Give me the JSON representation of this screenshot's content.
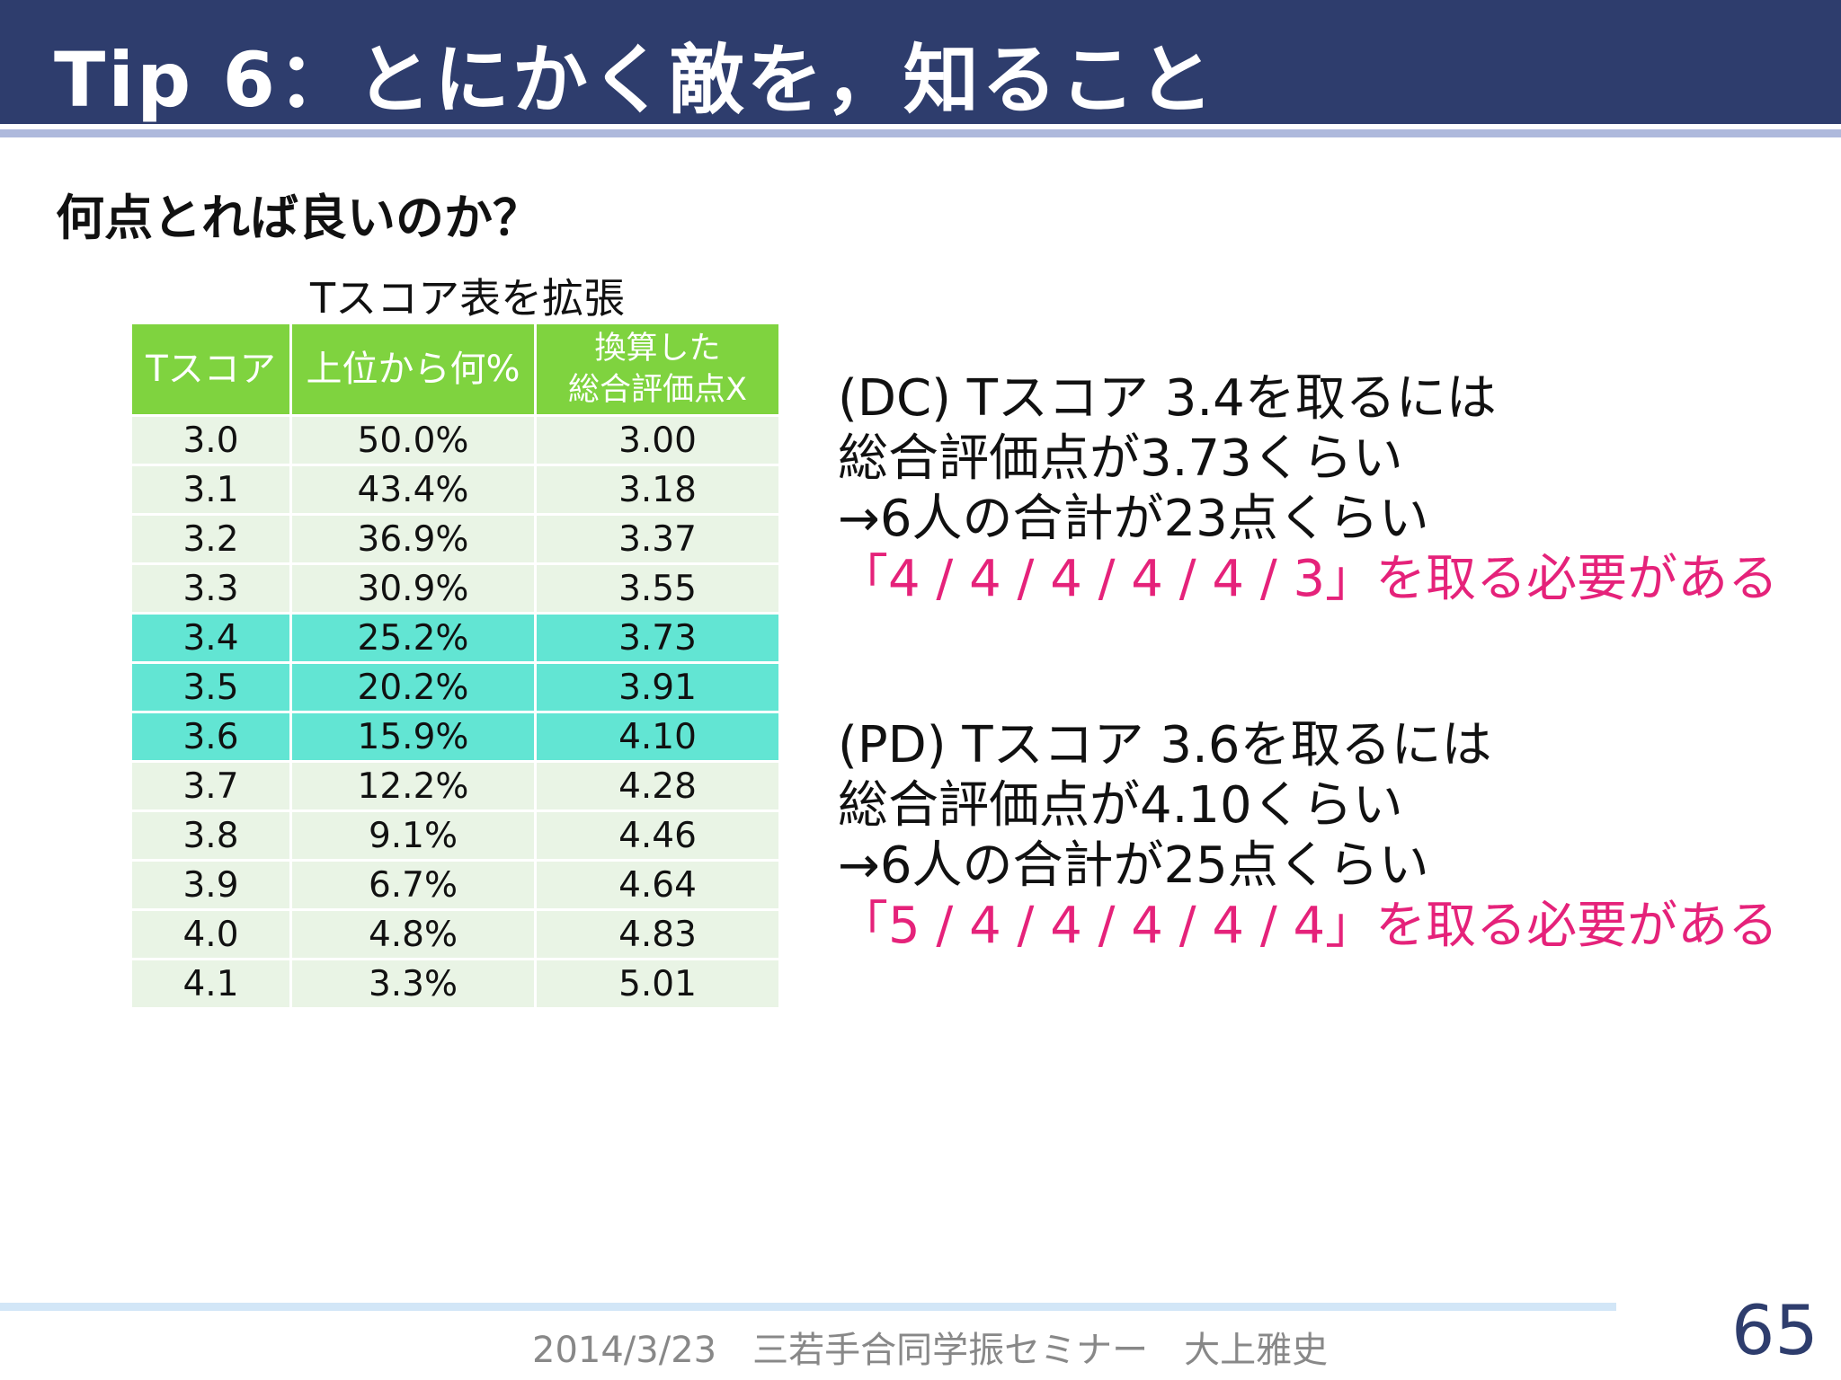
{
  "slide": {
    "title": "Tip 6：とにかく敵を，知ること",
    "subtitle": "何点とれば良いのか？",
    "page_number": "65"
  },
  "table": {
    "caption": "Tスコア表を拡張",
    "headers": [
      "Tスコア",
      "上位から何%",
      "換算した",
      "総合評価点X"
    ],
    "rows": [
      {
        "t": "3.0",
        "pct": "50.0%",
        "x": "3.00",
        "highlight": false
      },
      {
        "t": "3.1",
        "pct": "43.4%",
        "x": "3.18",
        "highlight": false
      },
      {
        "t": "3.2",
        "pct": "36.9%",
        "x": "3.37",
        "highlight": false
      },
      {
        "t": "3.3",
        "pct": "30.9%",
        "x": "3.55",
        "highlight": false
      },
      {
        "t": "3.4",
        "pct": "25.2%",
        "x": "3.73",
        "highlight": true
      },
      {
        "t": "3.5",
        "pct": "20.2%",
        "x": "3.91",
        "highlight": true
      },
      {
        "t": "3.6",
        "pct": "15.9%",
        "x": "4.10",
        "highlight": true
      },
      {
        "t": "3.7",
        "pct": "12.2%",
        "x": "4.28",
        "highlight": false
      },
      {
        "t": "3.8",
        "pct": "9.1%",
        "x": "4.46",
        "highlight": false
      },
      {
        "t": "3.9",
        "pct": "6.7%",
        "x": "4.64",
        "highlight": false
      },
      {
        "t": "4.0",
        "pct": "4.8%",
        "x": "4.83",
        "highlight": false
      },
      {
        "t": "4.1",
        "pct": "3.3%",
        "x": "5.01",
        "highlight": false
      }
    ]
  },
  "notes": {
    "dc": {
      "line1": "(DC) Tスコア 3.4を取るには",
      "line2": "総合評価点が3.73くらい",
      "line3": "→6人の合計が23点くらい",
      "line4": "「4 / 4 / 4 / 4 / 4 / 3」を取る必要がある"
    },
    "pd": {
      "line1": "(PD) Tスコア 3.6を取るには",
      "line2": "総合評価点が4.10くらい",
      "line3": "→6人の合計が25点くらい",
      "line4": "「5 / 4 / 4 / 4 / 4 / 4」を取る必要がある"
    }
  },
  "footer": {
    "text": "2014/3/23　三若手合同学振セミナー　大上雅史"
  },
  "colors": {
    "header_bg": "#2e3d6d",
    "table_header_bg": "#7fd33f",
    "row_bg": "#e9f4e5",
    "highlight_row_bg": "#62e5d3",
    "accent_pink": "#e5227a"
  }
}
